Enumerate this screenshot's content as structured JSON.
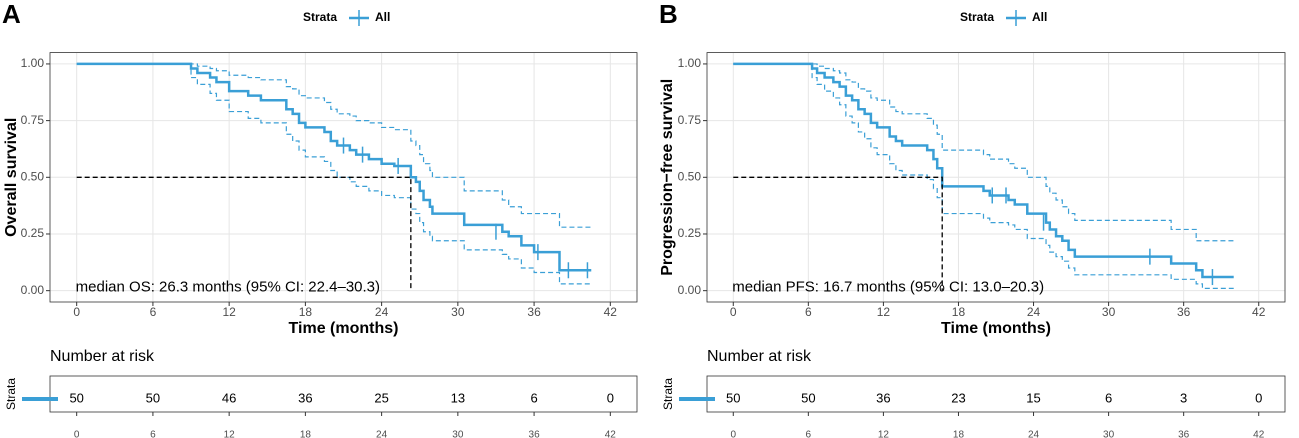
{
  "chart_data": [
    {
      "type": "line",
      "panel": "A",
      "legend_title": "Strata",
      "xlabel": "Time (months)",
      "ylabel": "Overall survival",
      "annotation": "median OS: 26.3 months (95% CI: 22.4–30.3)",
      "xlim": [
        -2.1,
        44.1
      ],
      "ylim": [
        -0.05,
        1.05
      ],
      "xticks": [
        0,
        6,
        12,
        18,
        24,
        30,
        36,
        42
      ],
      "yticks": [
        {
          "value": 0,
          "label": "0.00"
        },
        {
          "value": 0.25,
          "label": "0.25"
        },
        {
          "value": 0.5,
          "label": "0.50"
        },
        {
          "value": 0.75,
          "label": "0.75"
        },
        {
          "value": 1,
          "label": "1.00"
        }
      ],
      "grid": true,
      "series": [
        {
          "name": "All",
          "color": "#3a9fd6",
          "x": [
            0,
            9,
            9.5,
            10.5,
            11,
            12,
            13.5,
            14.5,
            16.5,
            17,
            17.5,
            18,
            19.5,
            20,
            20.5,
            21.5,
            22,
            23,
            24,
            25,
            26.3,
            26.7,
            27,
            27.3,
            27.8,
            28,
            30.5,
            33.5,
            34,
            35,
            36,
            38,
            40.5
          ],
          "values": [
            1,
            0.98,
            0.96,
            0.94,
            0.92,
            0.88,
            0.86,
            0.84,
            0.8,
            0.78,
            0.74,
            0.72,
            0.7,
            0.66,
            0.64,
            0.62,
            0.6,
            0.58,
            0.56,
            0.55,
            0.5,
            0.48,
            0.44,
            0.4,
            0.37,
            0.34,
            0.29,
            0.26,
            0.24,
            0.2,
            0.17,
            0.09,
            0.09
          ],
          "upper": [
            1,
            1,
            0.99,
            0.98,
            0.97,
            0.95,
            0.94,
            0.93,
            0.9,
            0.89,
            0.86,
            0.85,
            0.83,
            0.8,
            0.78,
            0.77,
            0.75,
            0.74,
            0.72,
            0.71,
            0.66,
            0.64,
            0.6,
            0.56,
            0.53,
            0.5,
            0.44,
            0.4,
            0.37,
            0.34,
            0.34,
            0.28,
            0.28
          ],
          "lower": [
            1,
            0.94,
            0.91,
            0.87,
            0.84,
            0.79,
            0.76,
            0.74,
            0.69,
            0.66,
            0.62,
            0.59,
            0.57,
            0.53,
            0.5,
            0.48,
            0.46,
            0.44,
            0.42,
            0.41,
            0.36,
            0.34,
            0.3,
            0.26,
            0.24,
            0.22,
            0.18,
            0.16,
            0.14,
            0.1,
            0.08,
            0.03,
            0.03
          ],
          "censor_x": [
            21,
            22.5,
            25.3,
            33,
            36.3,
            38.7,
            40.2
          ],
          "censor_values": [
            0.64,
            0.6,
            0.55,
            0.26,
            0.17,
            0.09,
            0.09
          ]
        }
      ],
      "median": {
        "x": 26.3,
        "y": 0.5
      },
      "risk_table": {
        "title": "Number at risk",
        "strata_label": "Strata",
        "times": [
          0,
          6,
          12,
          18,
          24,
          30,
          36,
          42
        ],
        "counts": [
          50,
          50,
          46,
          36,
          25,
          13,
          6,
          0
        ]
      }
    },
    {
      "type": "line",
      "panel": "B",
      "legend_title": "Strata",
      "xlabel": "Time (months)",
      "ylabel": "Progression−free survival",
      "annotation": "median PFS:  16.7 months (95% CI: 13.0–20.3)",
      "xlim": [
        -2.1,
        44.1
      ],
      "ylim": [
        -0.05,
        1.05
      ],
      "xticks": [
        0,
        6,
        12,
        18,
        24,
        30,
        36,
        42
      ],
      "yticks": [
        {
          "value": 0,
          "label": "0.00"
        },
        {
          "value": 0.25,
          "label": "0.25"
        },
        {
          "value": 0.5,
          "label": "0.50"
        },
        {
          "value": 0.75,
          "label": "0.75"
        },
        {
          "value": 1,
          "label": "1.00"
        }
      ],
      "grid": true,
      "series": [
        {
          "name": "All",
          "color": "#3a9fd6",
          "x": [
            0,
            6.3,
            6.7,
            7.3,
            8,
            8.5,
            9,
            9.5,
            10,
            10.5,
            11,
            11.5,
            12.5,
            13,
            13.5,
            15.5,
            16,
            16.3,
            16.7,
            20,
            20.5,
            22,
            22.5,
            23.5,
            25,
            25.3,
            25.8,
            26.3,
            26.8,
            27.3,
            35,
            37,
            37.5,
            40
          ],
          "values": [
            1,
            0.98,
            0.96,
            0.94,
            0.92,
            0.9,
            0.86,
            0.84,
            0.8,
            0.78,
            0.74,
            0.72,
            0.68,
            0.66,
            0.64,
            0.62,
            0.58,
            0.54,
            0.46,
            0.44,
            0.42,
            0.4,
            0.38,
            0.34,
            0.3,
            0.27,
            0.24,
            0.22,
            0.18,
            0.15,
            0.12,
            0.09,
            0.06,
            0.06
          ],
          "upper": [
            1,
            1,
            0.99,
            0.98,
            0.97,
            0.96,
            0.93,
            0.92,
            0.89,
            0.88,
            0.85,
            0.84,
            0.81,
            0.79,
            0.78,
            0.76,
            0.73,
            0.69,
            0.62,
            0.6,
            0.58,
            0.56,
            0.54,
            0.5,
            0.46,
            0.43,
            0.4,
            0.37,
            0.34,
            0.31,
            0.27,
            0.22,
            0.22,
            0.22
          ],
          "lower": [
            1,
            0.94,
            0.91,
            0.88,
            0.85,
            0.82,
            0.77,
            0.74,
            0.7,
            0.67,
            0.63,
            0.6,
            0.56,
            0.53,
            0.51,
            0.49,
            0.45,
            0.41,
            0.34,
            0.32,
            0.3,
            0.29,
            0.27,
            0.23,
            0.2,
            0.17,
            0.15,
            0.13,
            0.1,
            0.07,
            0.05,
            0.03,
            0.01,
            0.01
          ],
          "censor_x": [
            20.7,
            21.8,
            24.8,
            33.3,
            38.3
          ],
          "censor_values": [
            0.42,
            0.42,
            0.3,
            0.15,
            0.06
          ]
        }
      ],
      "median": {
        "x": 16.7,
        "y": 0.5
      },
      "risk_table": {
        "title": "Number at risk",
        "strata_label": "Strata",
        "times": [
          0,
          6,
          12,
          18,
          24,
          30,
          36,
          42
        ],
        "counts": [
          50,
          50,
          36,
          23,
          15,
          6,
          3,
          0
        ]
      }
    }
  ]
}
